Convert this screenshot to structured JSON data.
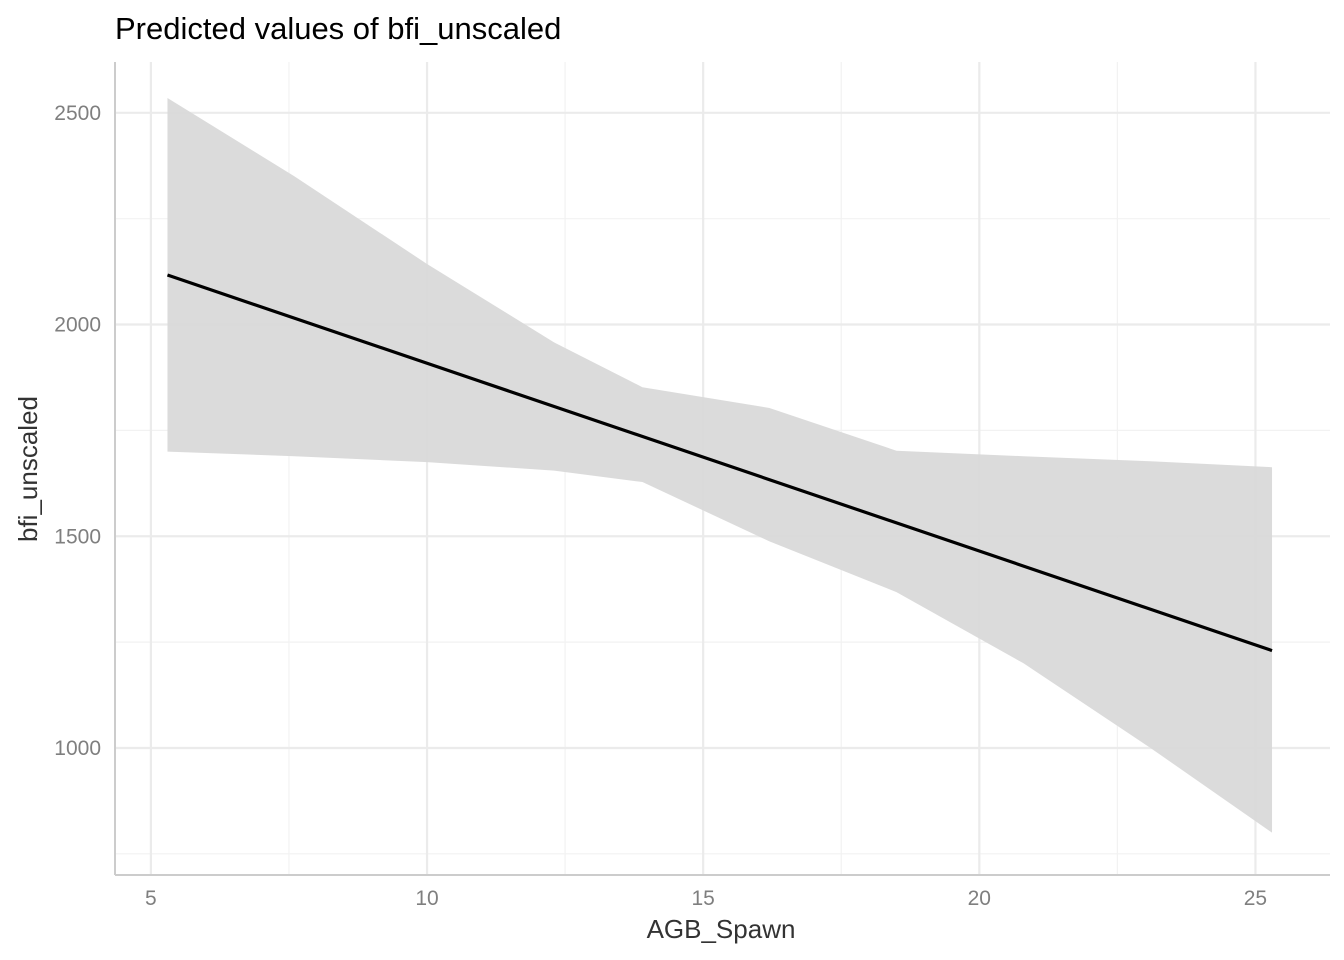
{
  "chart_data": {
    "type": "line",
    "title": "Predicted values of bfi_unscaled",
    "xlabel": "AGB_Spawn",
    "ylabel": "bfi_unscaled",
    "xlim": [
      4.35,
      26.35
    ],
    "ylim": [
      700,
      2620
    ],
    "x_ticks": [
      5,
      10,
      15,
      20,
      25
    ],
    "x_tick_labels": [
      "5",
      "10",
      "15",
      "20",
      "25"
    ],
    "y_ticks": [
      1000,
      1500,
      2000,
      2500
    ],
    "y_tick_labels": [
      "1000",
      "1500",
      "2000",
      "2500"
    ],
    "grid": true,
    "legend": "none",
    "colors": {
      "line": "#000000",
      "ribbon": "#d9d9d9",
      "grid_major": "#ebebeb",
      "grid_minor": "#f2f2f2",
      "axis": "#cccccc"
    },
    "series": [
      {
        "x": [
          5.3,
          25.3
        ],
        "values": [
          2117,
          1230
        ]
      }
    ],
    "ribbon": {
      "x": [
        5.3,
        7.6,
        10.0,
        12.3,
        13.9,
        16.2,
        18.5,
        20.8,
        23.1,
        25.3
      ],
      "upper": [
        2535,
        2350,
        2143,
        1958,
        1852,
        1803,
        1702,
        1689,
        1677,
        1663
      ],
      "lower": [
        1700,
        1689,
        1675,
        1655,
        1628,
        1488,
        1368,
        1200,
        1000,
        800
      ]
    }
  }
}
